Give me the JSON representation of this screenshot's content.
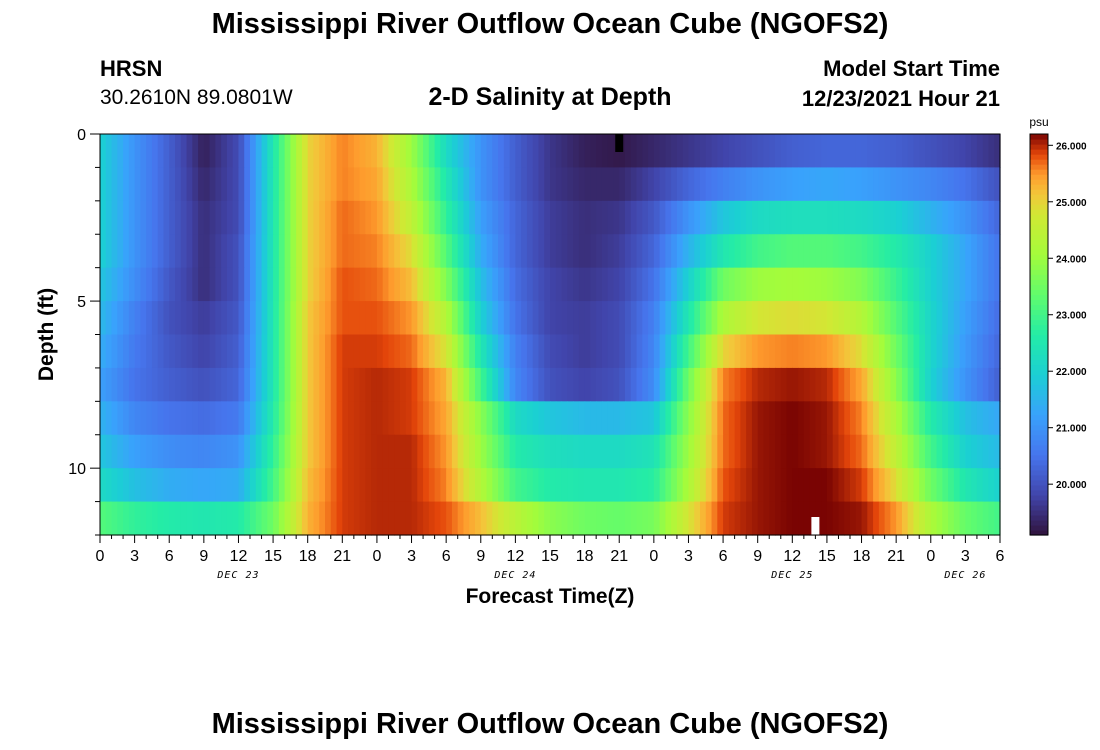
{
  "header": {
    "title": "Mississippi River Outflow Ocean Cube (NGOFS2)",
    "station_name": "HRSN",
    "station_coords": "30.2610N  89.0801W",
    "subtitle": "2-D Salinity at Depth",
    "model_start_label": "Model Start Time",
    "model_start_value": "12/23/2021 Hour 21"
  },
  "footer": {
    "title_repeat": "Mississippi River Outflow Ocean Cube (NGOFS2)"
  },
  "chart_data": {
    "type": "heatmap",
    "title": "2-D Salinity at Depth",
    "xlabel": "Forecast Time(Z)",
    "ylabel": "Depth (ft)",
    "colorbar_unit": "psu",
    "x_ticks": [
      "0",
      "3",
      "6",
      "9",
      "12",
      "15",
      "18",
      "21",
      "0",
      "3",
      "6",
      "9",
      "12",
      "15",
      "18",
      "21",
      "0",
      "3",
      "6",
      "9",
      "12",
      "15",
      "18",
      "21",
      "0",
      "3",
      "6"
    ],
    "x_hours": [
      0,
      78
    ],
    "day_labels": [
      {
        "label": "DEC 23",
        "hour": 12
      },
      {
        "label": "DEC 24",
        "hour": 36
      },
      {
        "label": "DEC 25",
        "hour": 60
      },
      {
        "label": "DEC 26",
        "hour": 75
      }
    ],
    "y_ticks": [
      "0",
      "5",
      "10"
    ],
    "y_tick_values": [
      0,
      5,
      10
    ],
    "ylim": [
      0,
      12
    ],
    "colorbar_ticks": [
      "26.000",
      "25.000",
      "24.000",
      "23.000",
      "22.000",
      "21.000",
      "20.000"
    ],
    "colorbar_tick_values": [
      26,
      25,
      24,
      23,
      22,
      21,
      20
    ],
    "colorbar_range": [
      19.1,
      26.2
    ],
    "time_hours": [
      0,
      3,
      6,
      9,
      12,
      15,
      18,
      21,
      24,
      27,
      30,
      33,
      36,
      39,
      42,
      45,
      48,
      51,
      54,
      57,
      60,
      63,
      66,
      69,
      72,
      75,
      78
    ],
    "depth_ft": [
      0.5,
      1.5,
      2.5,
      3.5,
      4.5,
      5.5,
      6.5,
      7.5,
      8.5,
      9.5,
      10.5,
      11.5
    ],
    "salinity_psu": [
      [
        22.0,
        21.0,
        20.2,
        19.3,
        19.9,
        22.5,
        25.0,
        25.6,
        25.3,
        24.0,
        22.2,
        21.0,
        20.2,
        19.6,
        19.3,
        19.2,
        19.4,
        19.6,
        19.8,
        20.0,
        20.2,
        20.3,
        20.3,
        20.2,
        20.0,
        19.8,
        19.5
      ],
      [
        22.0,
        21.0,
        20.2,
        19.4,
        19.9,
        22.5,
        25.0,
        25.6,
        25.4,
        24.2,
        22.5,
        21.0,
        20.2,
        19.6,
        19.4,
        19.4,
        19.8,
        20.3,
        20.7,
        21.0,
        21.2,
        21.3,
        21.2,
        21.0,
        20.8,
        20.5,
        20.0
      ],
      [
        22.0,
        21.0,
        20.2,
        19.5,
        19.9,
        22.5,
        25.0,
        25.7,
        25.5,
        24.5,
        22.8,
        21.2,
        20.3,
        19.7,
        19.5,
        19.6,
        20.1,
        21.0,
        21.8,
        22.2,
        22.3,
        22.3,
        22.2,
        22.0,
        21.5,
        21.0,
        20.3
      ],
      [
        22.0,
        21.0,
        20.2,
        19.5,
        20.0,
        22.5,
        25.0,
        25.7,
        25.6,
        24.9,
        23.2,
        21.4,
        20.3,
        19.7,
        19.5,
        19.7,
        20.3,
        21.5,
        22.5,
        23.0,
        23.2,
        23.2,
        23.0,
        22.6,
        22.0,
        21.3,
        20.5
      ],
      [
        21.8,
        20.9,
        20.1,
        19.5,
        20.0,
        22.5,
        25.0,
        25.8,
        25.7,
        25.2,
        23.7,
        21.7,
        20.4,
        19.8,
        19.6,
        19.8,
        20.5,
        22.0,
        23.5,
        24.0,
        24.1,
        24.0,
        23.7,
        22.9,
        22.0,
        21.3,
        20.5
      ],
      [
        21.6,
        20.7,
        20.0,
        19.7,
        20.1,
        22.5,
        25.1,
        25.8,
        25.8,
        25.5,
        24.3,
        22.0,
        20.5,
        19.8,
        19.7,
        19.9,
        20.7,
        22.5,
        24.2,
        24.8,
        24.9,
        24.8,
        24.3,
        23.2,
        22.1,
        21.2,
        20.4
      ],
      [
        21.4,
        20.6,
        20.1,
        19.8,
        20.2,
        22.5,
        25.1,
        25.9,
        25.9,
        25.7,
        24.8,
        22.5,
        20.7,
        19.9,
        19.7,
        19.9,
        20.8,
        23.0,
        25.0,
        25.5,
        25.6,
        25.5,
        24.9,
        23.5,
        22.1,
        21.1,
        20.3
      ],
      [
        21.2,
        20.5,
        20.2,
        20.0,
        20.3,
        22.5,
        25.1,
        25.9,
        26.0,
        25.9,
        25.3,
        23.0,
        20.8,
        20.0,
        19.8,
        20.0,
        20.9,
        23.5,
        25.6,
        26.0,
        26.1,
        26.0,
        25.4,
        23.8,
        22.0,
        21.0,
        20.2
      ],
      [
        21.5,
        20.8,
        20.5,
        20.4,
        20.6,
        22.6,
        25.1,
        25.9,
        26.0,
        25.9,
        25.4,
        23.8,
        22.2,
        21.8,
        21.6,
        21.6,
        21.8,
        23.8,
        25.7,
        26.1,
        26.2,
        26.1,
        25.6,
        24.2,
        22.6,
        21.7,
        21.3
      ],
      [
        21.8,
        21.2,
        20.9,
        20.8,
        21.0,
        22.8,
        25.1,
        25.9,
        26.0,
        26.0,
        25.5,
        24.0,
        22.6,
        22.3,
        22.2,
        22.2,
        22.4,
        24.0,
        25.7,
        26.1,
        26.2,
        26.1,
        25.7,
        24.5,
        23.0,
        22.0,
        21.6
      ],
      [
        22.2,
        21.7,
        21.4,
        21.3,
        21.4,
        23.0,
        25.2,
        25.9,
        26.0,
        26.0,
        25.6,
        24.3,
        23.0,
        22.6,
        22.5,
        22.5,
        22.7,
        24.2,
        25.8,
        26.1,
        26.2,
        26.2,
        25.9,
        24.9,
        23.5,
        22.5,
        22.0
      ],
      [
        23.2,
        22.8,
        22.6,
        22.5,
        22.6,
        23.5,
        25.3,
        25.9,
        26.0,
        26.0,
        25.8,
        25.2,
        24.4,
        23.8,
        23.5,
        23.4,
        23.6,
        24.8,
        25.9,
        26.1,
        26.2,
        26.2,
        26.1,
        25.5,
        24.2,
        23.4,
        23.0
      ]
    ],
    "markers": [
      {
        "kind": "black",
        "hour": 45,
        "depth": 0
      },
      {
        "kind": "white",
        "hour": 62,
        "depth": 12
      }
    ]
  }
}
